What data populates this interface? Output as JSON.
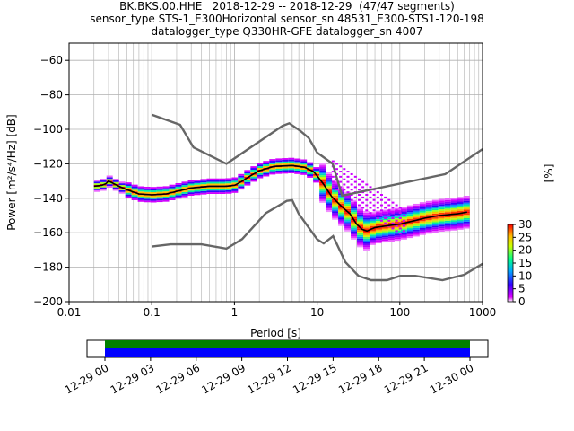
{
  "header": {
    "title_lines": [
      "BK.BKS.00.HHE   2018-12-29 -- 2018-12-29  (47/47 segments)",
      "sensor_type STS-1_E300Horizontal sensor_sn 48531_E300-STS1-120-198",
      "datalogger_type Q330HR-GFE datalogger_sn 4007"
    ]
  },
  "chart_data": [
    {
      "type": "heatmap",
      "title": "BK.BKS.00.HHE   2018-12-29 -- 2018-12-29  (47/47 segments)",
      "xlabel": "Period [s]",
      "ylabel": "Power [m²/s⁴/Hz] [dB]",
      "x_scale": "log",
      "xlim": [
        0.01,
        1000
      ],
      "ylim": [
        -200,
        -50
      ],
      "x_ticks": [
        {
          "value": 0.01,
          "label": "0.01"
        },
        {
          "value": 0.1,
          "label": "0.1"
        },
        {
          "value": 1,
          "label": "1"
        },
        {
          "value": 10,
          "label": "10"
        },
        {
          "value": 100,
          "label": "100"
        },
        {
          "value": 1000,
          "label": "1000"
        }
      ],
      "y_ticks": [
        -60,
        -80,
        -100,
        -120,
        -140,
        -160,
        -180,
        -200
      ],
      "grid": true,
      "colorbar": {
        "label": "[%]",
        "ticks": [
          0,
          5,
          10,
          15,
          20,
          25,
          30
        ],
        "range": [
          0,
          30
        ],
        "colors": [
          "#ffffff",
          "#cc00ff",
          "#0000ff",
          "#00ccff",
          "#00ff66",
          "#ffff00",
          "#ff8800",
          "#ff0000"
        ]
      },
      "series": [
        {
          "name": "",
          "role": "mean",
          "color": "#000000",
          "points": [
            [
              0.02,
              -133
            ],
            [
              0.025,
              -132.5
            ],
            [
              0.028,
              -131.5
            ],
            [
              0.03,
              -130
            ],
            [
              0.033,
              -131
            ],
            [
              0.04,
              -133
            ],
            [
              0.05,
              -135
            ],
            [
              0.07,
              -137.5
            ],
            [
              0.1,
              -138
            ],
            [
              0.15,
              -137.5
            ],
            [
              0.2,
              -136
            ],
            [
              0.3,
              -134
            ],
            [
              0.5,
              -133
            ],
            [
              0.8,
              -133
            ],
            [
              1,
              -132.5
            ],
            [
              1.2,
              -130.5
            ],
            [
              1.5,
              -127.5
            ],
            [
              2,
              -124
            ],
            [
              3,
              -121.5
            ],
            [
              5,
              -121
            ],
            [
              7,
              -122
            ],
            [
              9,
              -124.5
            ],
            [
              10,
              -127
            ],
            [
              12,
              -132
            ],
            [
              15,
              -139
            ],
            [
              20,
              -145
            ],
            [
              25,
              -149
            ],
            [
              30,
              -155
            ],
            [
              35,
              -158
            ],
            [
              40,
              -159
            ],
            [
              50,
              -157
            ],
            [
              70,
              -156
            ],
            [
              100,
              -155
            ],
            [
              150,
              -153
            ],
            [
              200,
              -151.5
            ],
            [
              300,
              -150
            ],
            [
              500,
              -149
            ],
            [
              650,
              -148
            ]
          ]
        },
        {
          "name": "",
          "role": "noise-model-high",
          "color": "#666666",
          "points": [
            [
              0.1,
              -91.5
            ],
            [
              0.22,
              -97.4
            ],
            [
              0.32,
              -110.5
            ],
            [
              0.8,
              -120
            ],
            [
              3.8,
              -98
            ],
            [
              4.6,
              -96.5
            ],
            [
              6.3,
              -101
            ],
            [
              7.9,
              -105
            ],
            [
              10,
              -113.5
            ],
            [
              12.6,
              -117
            ],
            [
              15.4,
              -120
            ],
            [
              20,
              -138.5
            ],
            [
              354.8,
              -126
            ],
            [
              1000,
              -111.5
            ]
          ]
        },
        {
          "name": "",
          "role": "noise-model-low",
          "color": "#666666",
          "points": [
            [
              0.1,
              -168
            ],
            [
              0.17,
              -166.7
            ],
            [
              0.4,
              -166.7
            ],
            [
              0.8,
              -169.2
            ],
            [
              1.24,
              -163.7
            ],
            [
              2.4,
              -148.6
            ],
            [
              4.3,
              -141.5
            ],
            [
              5,
              -141.1
            ],
            [
              6,
              -149
            ],
            [
              10,
              -163.8
            ],
            [
              12,
              -166.2
            ],
            [
              15.6,
              -162
            ],
            [
              21.9,
              -177
            ],
            [
              31.6,
              -185
            ],
            [
              45,
              -187.5
            ],
            [
              70,
              -187.5
            ],
            [
              101,
              -185
            ],
            [
              154,
              -185
            ],
            [
              328,
              -187.5
            ],
            [
              600,
              -184.4
            ],
            [
              1000,
              -178
            ]
          ]
        }
      ]
    },
    {
      "type": "timeline",
      "x_ticks": [
        "12-29 00",
        "12-29 03",
        "12-29 06",
        "12-29 09",
        "12-29 12",
        "12-29 15",
        "12-29 18",
        "12-29 21",
        "12-30 00"
      ],
      "bands": [
        {
          "color": "#008000",
          "start": 0,
          "end": 24
        },
        {
          "color": "#0000ff",
          "start": 0,
          "end": 24
        }
      ]
    }
  ]
}
